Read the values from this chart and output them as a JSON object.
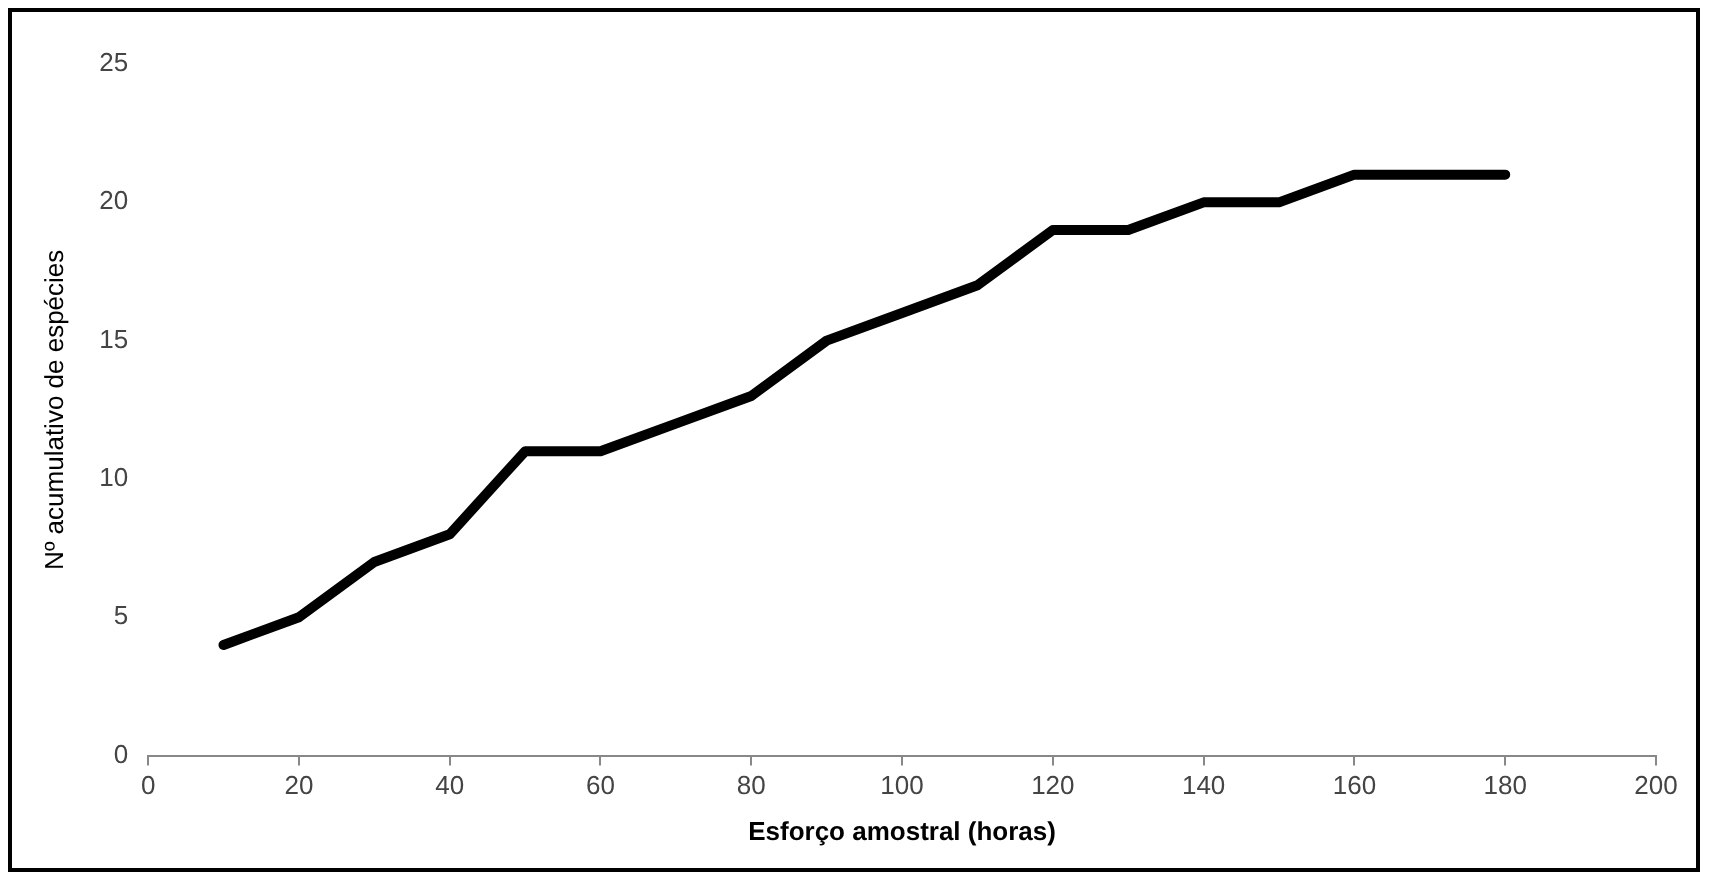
{
  "chart_data": {
    "type": "line",
    "xlabel": "Esforço amostral (horas)",
    "ylabel": "Nº acumulativo de espécies",
    "x": [
      10,
      20,
      30,
      40,
      50,
      60,
      70,
      80,
      90,
      100,
      110,
      120,
      130,
      140,
      150,
      160,
      170,
      180
    ],
    "series": [
      {
        "color": "#000000",
        "values": [
          4,
          5,
          7,
          8,
          11,
          11,
          12,
          13,
          15,
          16,
          17,
          19,
          19,
          20,
          20,
          21,
          21,
          21
        ]
      }
    ],
    "xlim": [
      0,
      200
    ],
    "xticks": [
      0,
      20,
      40,
      60,
      80,
      100,
      120,
      140,
      160,
      180,
      200
    ],
    "ylim": [
      0,
      25
    ],
    "yticks": [
      0,
      5,
      10,
      15,
      20,
      25
    ],
    "grid": false,
    "legend": false,
    "marker": "none",
    "line_style": "solid"
  }
}
